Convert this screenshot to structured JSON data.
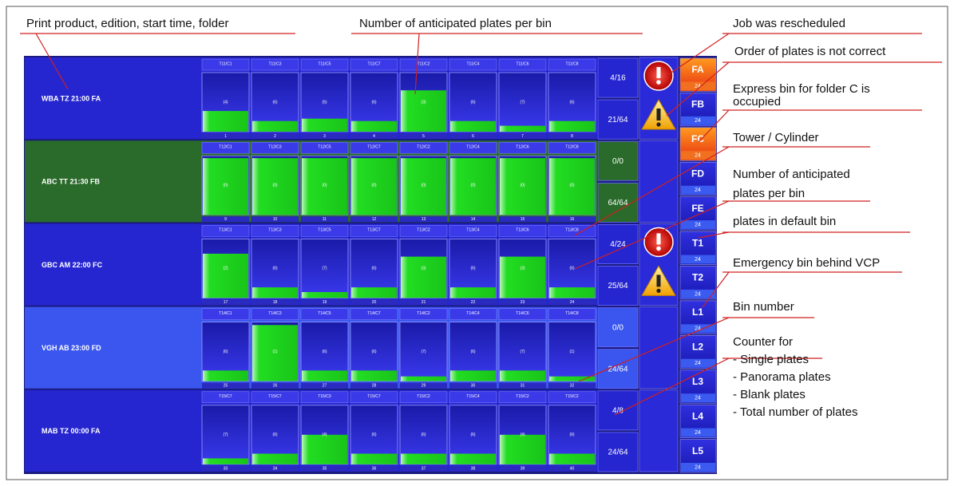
{
  "jobs": [
    {
      "label": "WBA  TZ 21:00  FA",
      "color": "#2626d0",
      "counters": [
        "4/16",
        "21/64"
      ],
      "icons": [
        "error",
        "warning"
      ],
      "bins": [
        {
          "tower": "T11/C1",
          "count": "(4)",
          "number": "1",
          "fill": 35
        },
        {
          "tower": "T11/C3",
          "count": "(6)",
          "number": "2",
          "fill": 18
        },
        {
          "tower": "T11/C5",
          "count": "(5)",
          "number": "3",
          "fill": 22
        },
        {
          "tower": "T11/C7",
          "count": "(6)",
          "number": "4",
          "fill": 18
        },
        {
          "tower": "T11/C2",
          "count": "(3)",
          "number": "5",
          "fill": 70
        },
        {
          "tower": "T11/C4",
          "count": "(6)",
          "number": "6",
          "fill": 18
        },
        {
          "tower": "T11/C6",
          "count": "(7)",
          "number": "7",
          "fill": 10
        },
        {
          "tower": "T11/C8",
          "count": "(6)",
          "number": "8",
          "fill": 18
        }
      ]
    },
    {
      "label": "ABC TT 21:30 FB",
      "color": "#2a6a2a",
      "counters": [
        "0/0",
        "64/64"
      ],
      "icons": [],
      "bins": [
        {
          "tower": "T12/C1",
          "count": "(0)",
          "number": "9",
          "fill": 96
        },
        {
          "tower": "T12/C3",
          "count": "(0)",
          "number": "10",
          "fill": 96
        },
        {
          "tower": "T12/C5",
          "count": "(0)",
          "number": "11",
          "fill": 96
        },
        {
          "tower": "T12/C7",
          "count": "(0)",
          "number": "12",
          "fill": 96
        },
        {
          "tower": "T12/C2",
          "count": "(0)",
          "number": "13",
          "fill": 96
        },
        {
          "tower": "T12/C4",
          "count": "(0)",
          "number": "14",
          "fill": 96
        },
        {
          "tower": "T12/C6",
          "count": "(0)",
          "number": "15",
          "fill": 96
        },
        {
          "tower": "T12/C8",
          "count": "(0)",
          "number": "16",
          "fill": 96
        }
      ]
    },
    {
      "label": "GBC  AM 22:00 FC",
      "color": "#2626d0",
      "counters": [
        "4/24",
        "25/64"
      ],
      "icons": [
        "error",
        "warning"
      ],
      "bins": [
        {
          "tower": "T13/C1",
          "count": "(2)",
          "number": "17",
          "fill": 75
        },
        {
          "tower": "T13/C3",
          "count": "(6)",
          "number": "18",
          "fill": 18
        },
        {
          "tower": "T13/C5",
          "count": "(7)",
          "number": "19",
          "fill": 10
        },
        {
          "tower": "T13/C7",
          "count": "(6)",
          "number": "20",
          "fill": 18
        },
        {
          "tower": "T13/C2",
          "count": "(3)",
          "number": "21",
          "fill": 70
        },
        {
          "tower": "T13/C4",
          "count": "(6)",
          "number": "22",
          "fill": 18
        },
        {
          "tower": "T13/C6",
          "count": "(3)",
          "number": "23",
          "fill": 70
        },
        {
          "tower": "T13/C8",
          "count": "(6)",
          "number": "24",
          "fill": 18
        }
      ]
    },
    {
      "label": "VGH AB 23:00 FD",
      "color": "#3a56ee",
      "counters": [
        "0/0",
        "24/64"
      ],
      "icons": [],
      "bins": [
        {
          "tower": "T14/C1",
          "count": "(6)",
          "number": "25",
          "fill": 18
        },
        {
          "tower": "T14/C3",
          "count": "(1)",
          "number": "26",
          "fill": 95
        },
        {
          "tower": "T14/C5",
          "count": "(6)",
          "number": "27",
          "fill": 18
        },
        {
          "tower": "T14/C7",
          "count": "(6)",
          "number": "28",
          "fill": 18
        },
        {
          "tower": "T14/C2",
          "count": "(7)",
          "number": "29",
          "fill": 8
        },
        {
          "tower": "T14/C4",
          "count": "(6)",
          "number": "30",
          "fill": 18
        },
        {
          "tower": "T14/C6",
          "count": "(7)",
          "number": "31",
          "fill": 18
        },
        {
          "tower": "T14/C8",
          "count": "(1)",
          "number": "32",
          "fill": 8
        }
      ]
    },
    {
      "label": "MAB  TZ 00:00  FA",
      "color": "#2626d0",
      "counters": [
        "4/8",
        "24/64"
      ],
      "icons": [],
      "bins": [
        {
          "tower": "T15/C7",
          "count": "(7)",
          "number": "33",
          "fill": 10
        },
        {
          "tower": "T15/C7",
          "count": "(6)",
          "number": "34",
          "fill": 18
        },
        {
          "tower": "T15/C3",
          "count": "(4)",
          "number": "35",
          "fill": 50
        },
        {
          "tower": "T15/C7",
          "count": "(6)",
          "number": "36",
          "fill": 18
        },
        {
          "tower": "T15/C2",
          "count": "(6)",
          "number": "37",
          "fill": 18
        },
        {
          "tower": "T15/C4",
          "count": "(6)",
          "number": "38",
          "fill": 18
        },
        {
          "tower": "T15/C2",
          "count": "(4)",
          "number": "39",
          "fill": 50
        },
        {
          "tower": "T15/C2",
          "count": "(6)",
          "number": "40",
          "fill": 18
        }
      ]
    }
  ],
  "side": [
    {
      "name": "FA",
      "value": "24",
      "highlight": true
    },
    {
      "name": "FB",
      "value": "24",
      "highlight": false
    },
    {
      "name": "FC",
      "value": "24",
      "highlight": true
    },
    {
      "name": "FD",
      "value": "24",
      "highlight": false
    },
    {
      "name": "FE",
      "value": "24",
      "highlight": false
    },
    {
      "name": "T1",
      "value": "24",
      "highlight": false
    },
    {
      "name": "T2",
      "value": "24",
      "highlight": false
    },
    {
      "name": "L1",
      "value": "24",
      "highlight": false
    },
    {
      "name": "L2",
      "value": "24",
      "highlight": false
    },
    {
      "name": "L3",
      "value": "24",
      "highlight": false
    },
    {
      "name": "L4",
      "value": "24",
      "highlight": false
    },
    {
      "name": "L5",
      "value": "24",
      "highlight": false
    }
  ],
  "annotations": [
    {
      "lines": [
        "Print product, edition, start time, folder"
      ]
    },
    {
      "lines": [
        "Number of anticipated plates per bin"
      ]
    },
    {
      "lines": [
        "Job was rescheduled"
      ]
    },
    {
      "lines": [
        "Order of plates is not correct"
      ]
    },
    {
      "lines": [
        "Express bin for folder C is",
        "occupied"
      ]
    },
    {
      "lines": [
        "Tower / Cylinder"
      ]
    },
    {
      "lines": [
        "Number of anticipated",
        "plates per bin"
      ]
    },
    {
      "lines": [
        "plates in default bin"
      ]
    },
    {
      "lines": [
        "Emergency bin behind VCP"
      ]
    },
    {
      "lines": [
        "Bin number"
      ]
    },
    {
      "lines": [
        "Counter for",
        "- Single plates",
        "- Panorama plates",
        "- Blank plates",
        "- Total number of plates"
      ]
    }
  ]
}
